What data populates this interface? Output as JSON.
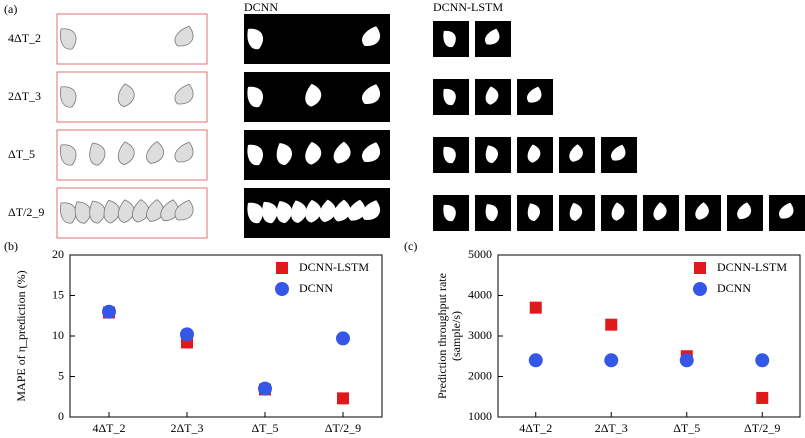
{
  "panel_a": {
    "label": "(a)",
    "col_dcnn": "DCNN",
    "col_lstm": "DCNN-LSTM",
    "rows": [
      "4ΔT_2",
      "2ΔT_3",
      "ΔT_5",
      "ΔT/2_9"
    ]
  },
  "chart_data": [
    {
      "type": "scatter",
      "panel_label": "(b)",
      "ylabel": [
        "MAPE of η_prediction (%)"
      ],
      "categories": [
        "4ΔT_2",
        "2ΔT_3",
        "ΔT_5",
        "ΔT/2_9"
      ],
      "ylim": [
        0,
        20
      ],
      "yticks": [
        0,
        5,
        10,
        15,
        20
      ],
      "grid": false,
      "legend": "upper-right",
      "series": [
        {
          "name": "DCNN-LSTM",
          "color": "#e0191c",
          "marker": "square",
          "values": [
            12.9,
            9.2,
            3.4,
            2.3
          ]
        },
        {
          "name": "DCNN",
          "color": "#3457e8",
          "marker": "circle",
          "values": [
            13.0,
            10.2,
            3.5,
            9.7
          ]
        }
      ]
    },
    {
      "type": "scatter",
      "panel_label": "(c)",
      "ylabel": [
        "Prediction throughput rate",
        "(sample/s)"
      ],
      "categories": [
        "4ΔT_2",
        "2ΔT_3",
        "ΔT_5",
        "ΔT/2_9"
      ],
      "ylim": [
        1000,
        5000
      ],
      "yticks": [
        1000,
        2000,
        3000,
        4000,
        5000
      ],
      "grid": false,
      "legend": "upper-right",
      "series": [
        {
          "name": "DCNN-LSTM",
          "color": "#e0191c",
          "marker": "square",
          "values": [
            3700,
            3280,
            2500,
            1470
          ]
        },
        {
          "name": "DCNN",
          "color": "#3457e8",
          "marker": "circle",
          "values": [
            2400,
            2400,
            2400,
            2400
          ]
        }
      ]
    }
  ]
}
